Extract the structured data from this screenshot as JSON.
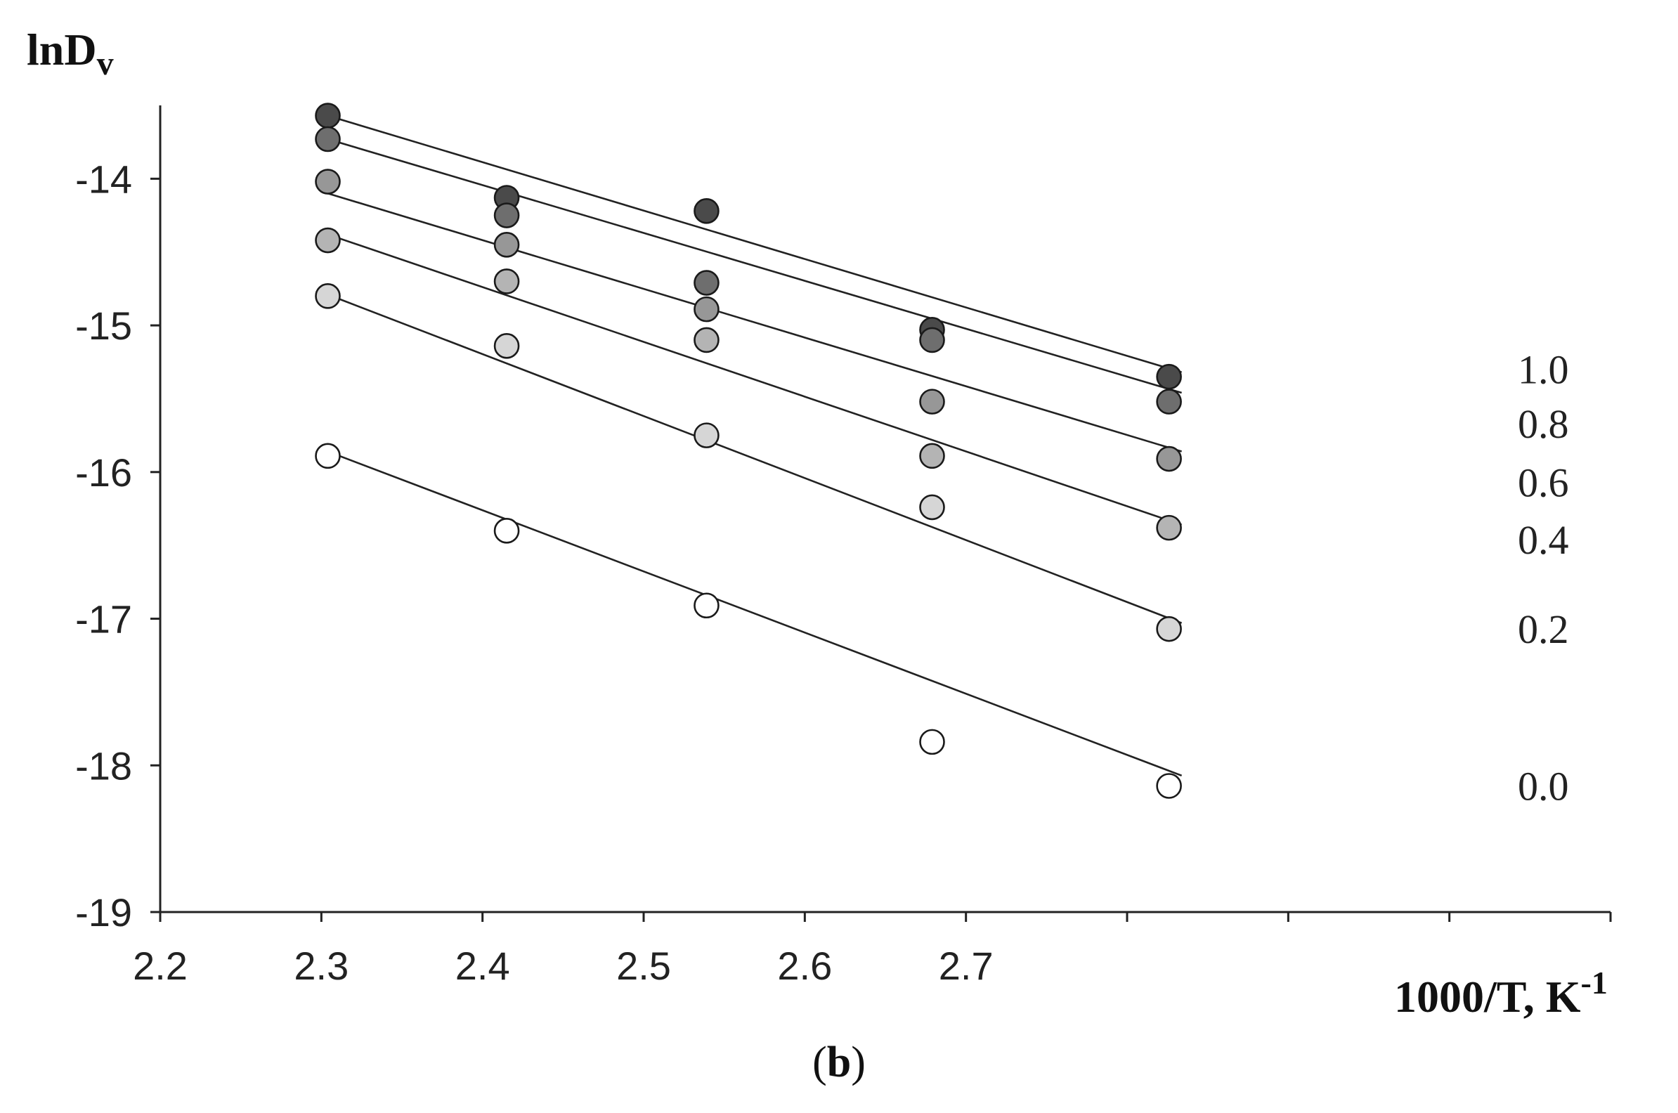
{
  "chart_data": {
    "type": "scatter",
    "panel_label_open": "(",
    "panel_label_letter": "b",
    "panel_label_close": ")",
    "ylabel_main": "lnD",
    "ylabel_sub": "v",
    "xlabel_main": "1000/T, K",
    "xlabel_sup": "-1",
    "xlim": [
      2.2,
      3.1
    ],
    "ylim": [
      -19,
      -13.5
    ],
    "xticks": [
      2.2,
      2.3,
      2.4,
      2.5,
      2.6,
      2.7
    ],
    "xtick_labels": [
      "2.2",
      "2.3",
      "2.4",
      "2.5",
      "2.6",
      "2.7"
    ],
    "yticks": [
      -14,
      -15,
      -16,
      -17,
      -18,
      -19
    ],
    "ytick_labels": [
      "-14",
      "-15",
      "-16",
      "-17",
      "-18",
      "-19"
    ],
    "grid": false,
    "series": [
      {
        "name": "1.0",
        "color": "#4a4a4a",
        "x": [
          2.304,
          2.415,
          2.539,
          2.679,
          2.826
        ],
        "y": [
          -13.57,
          -14.13,
          -14.22,
          -15.03,
          -15.35
        ],
        "fit_y": [
          -13.57,
          -15.31
        ]
      },
      {
        "name": "0.8",
        "color": "#6e6e6e",
        "x": [
          2.304,
          2.415,
          2.539,
          2.679,
          2.826
        ],
        "y": [
          -13.73,
          -14.25,
          -14.71,
          -15.1,
          -15.52
        ],
        "fit_y": [
          -13.73,
          -15.45
        ]
      },
      {
        "name": "0.6",
        "color": "#979797",
        "x": [
          2.304,
          2.415,
          2.539,
          2.679,
          2.826
        ],
        "y": [
          -14.02,
          -14.45,
          -14.89,
          -15.52,
          -15.91
        ],
        "fit_y": [
          -14.1,
          -15.85
        ]
      },
      {
        "name": "0.4",
        "color": "#b4b4b4",
        "x": [
          2.304,
          2.415,
          2.539,
          2.679,
          2.826
        ],
        "y": [
          -14.42,
          -14.7,
          -15.1,
          -15.89,
          -16.38
        ],
        "fit_y": [
          -14.38,
          -16.35
        ]
      },
      {
        "name": "0.2",
        "color": "#d6d6d6",
        "x": [
          2.304,
          2.415,
          2.539,
          2.679,
          2.826
        ],
        "y": [
          -14.8,
          -15.14,
          -15.75,
          -16.24,
          -17.07
        ],
        "fit_y": [
          -14.79,
          -17.02
        ]
      },
      {
        "name": "0.0",
        "color": "#ffffff",
        "x": [
          2.304,
          2.415,
          2.539,
          2.679,
          2.826
        ],
        "y": [
          -15.89,
          -16.4,
          -16.91,
          -17.84,
          -18.14
        ],
        "fit_y": [
          -15.86,
          -18.06
        ]
      }
    ]
  }
}
